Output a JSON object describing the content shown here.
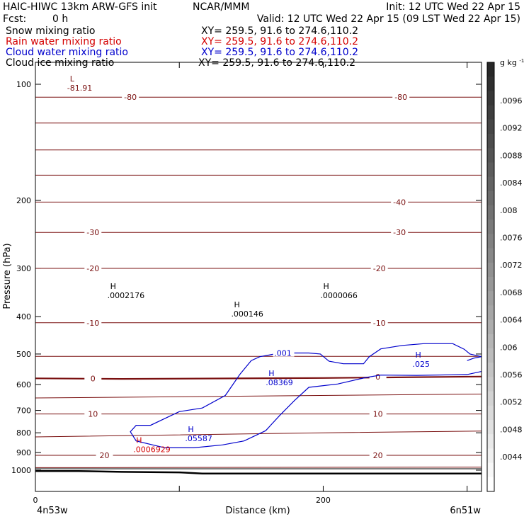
{
  "header": {
    "model": "HAIC-HIWC 13km ARW-GFS init",
    "org": "NCAR/MMM",
    "init": "Init: 12 UTC Wed 22 Apr 15",
    "fcst_label": "Fcst:",
    "fcst_value": "0 h",
    "valid": "Valid: 12 UTC Wed 22 Apr 15 (09 LST Wed 22 Apr 15)"
  },
  "fields": [
    {
      "name": "Snow mixing ratio",
      "xy": "XY= 259.5, 91.6 to 274.6,110.2",
      "color": "#000000"
    },
    {
      "name": "Rain water mixing ratio",
      "xy": "XY= 259.5, 91.6 to 274.6,110.2",
      "color": "#d40000"
    },
    {
      "name": "Cloud water mixing ratio",
      "xy": "XY= 259.5, 91.6 to 274.6,110.2",
      "color": "#0000cc"
    },
    {
      "name": "Cloud ice mixing ratio",
      "xy": "XY= 259.5, 91.6 to 274.6,110.2",
      "color": "#000000"
    }
  ],
  "colors": {
    "temperature": "#7a1010",
    "cloud_water": "#0000cc",
    "rain": "#d40000",
    "terrain": "#000000"
  },
  "chart_data": {
    "type": "line",
    "xlabel": "Distance (km)",
    "ylabel": "Pressure (hPa)",
    "xlim": [
      0,
      310
    ],
    "ylim": [
      1050,
      50
    ],
    "yscale": "log-pressure",
    "x_ticks": [
      0,
      100,
      200,
      300
    ],
    "x_tick_labels": [
      "0",
      "200"
    ],
    "y_ticks": [
      100,
      200,
      300,
      400,
      500,
      600,
      700,
      800,
      900,
      1000
    ],
    "x_endpoints": {
      "left": "4n53w",
      "right": "6n51w"
    },
    "temperature_isotherms": [
      {
        "value": -80,
        "label": "-80",
        "points": [
          [
            0,
            108
          ],
          [
            310,
            108
          ]
        ]
      },
      {
        "value": -70,
        "label": "",
        "points": [
          [
            0,
            126
          ],
          [
            310,
            126
          ]
        ]
      },
      {
        "value": -60,
        "label": "",
        "points": [
          [
            0,
            148
          ],
          [
            310,
            148
          ]
        ]
      },
      {
        "value": -50,
        "label": "",
        "points": [
          [
            0,
            172
          ],
          [
            310,
            172
          ]
        ]
      },
      {
        "value": -40,
        "label": "-40",
        "points": [
          [
            0,
            202
          ],
          [
            310,
            202
          ]
        ]
      },
      {
        "value": -30,
        "label": "-30",
        "points": [
          [
            0,
            242
          ],
          [
            310,
            242
          ]
        ]
      },
      {
        "value": -20,
        "label": "-20",
        "points": [
          [
            0,
            300
          ],
          [
            310,
            300
          ]
        ]
      },
      {
        "value": -10,
        "label": "-10",
        "points": [
          [
            0,
            415
          ],
          [
            310,
            415
          ]
        ]
      },
      {
        "value": -5,
        "label": "",
        "points": [
          [
            0,
            507
          ],
          [
            310,
            507
          ]
        ]
      },
      {
        "value": 0,
        "label": "0",
        "points": [
          [
            0,
            578
          ],
          [
            60,
            580
          ],
          [
            200,
            577
          ],
          [
            310,
            572
          ]
        ]
      },
      {
        "value": 5,
        "label": "",
        "points": [
          [
            0,
            650
          ],
          [
            310,
            635
          ]
        ]
      },
      {
        "value": 10,
        "label": "10",
        "points": [
          [
            0,
            715
          ],
          [
            310,
            715
          ]
        ]
      },
      {
        "value": 15,
        "label": "",
        "points": [
          [
            0,
            820
          ],
          [
            200,
            800
          ],
          [
            310,
            792
          ]
        ]
      },
      {
        "value": 20,
        "label": "20",
        "points": [
          [
            0,
            915
          ],
          [
            310,
            915
          ]
        ]
      },
      {
        "value": 25,
        "label": "",
        "points": [
          [
            0,
            985
          ],
          [
            310,
            982
          ]
        ]
      }
    ],
    "isotherm_labels": [
      {
        "text": "-80",
        "x": 66,
        "p": 108
      },
      {
        "text": "-80",
        "x": 254,
        "p": 108
      },
      {
        "text": "-40",
        "x": 253,
        "p": 202
      },
      {
        "text": "-30",
        "x": 40,
        "p": 242
      },
      {
        "text": "-30",
        "x": 253,
        "p": 242
      },
      {
        "text": "-20",
        "x": 40,
        "p": 300
      },
      {
        "text": "-20",
        "x": 239,
        "p": 300
      },
      {
        "text": "-10",
        "x": 40,
        "p": 415
      },
      {
        "text": "-10",
        "x": 239,
        "p": 415
      },
      {
        "text": "0",
        "x": 40,
        "p": 578
      },
      {
        "text": "0",
        "x": 238,
        "p": 572
      },
      {
        "text": "10",
        "x": 40,
        "p": 715
      },
      {
        "text": "10",
        "x": 238,
        "p": 715
      },
      {
        "text": "20",
        "x": 48,
        "p": 915
      },
      {
        "text": "20",
        "x": 238,
        "p": 915
      }
    ],
    "cloud_water_contour": {
      "value": ".001",
      "points": [
        [
          300,
          520
        ],
        [
          305,
          512
        ],
        [
          310,
          508
        ],
        [
          302,
          500
        ],
        [
          298,
          486
        ],
        [
          290,
          470
        ],
        [
          270,
          470
        ],
        [
          255,
          475
        ],
        [
          240,
          485
        ],
        [
          232,
          508
        ],
        [
          228,
          530
        ],
        [
          214,
          530
        ],
        [
          204,
          522
        ],
        [
          198,
          500
        ],
        [
          190,
          497
        ],
        [
          170,
          497
        ],
        [
          156,
          508
        ],
        [
          150,
          520
        ],
        [
          142,
          565
        ],
        [
          132,
          640
        ],
        [
          116,
          690
        ],
        [
          100,
          705
        ],
        [
          80,
          765
        ],
        [
          70,
          765
        ],
        [
          66,
          795
        ],
        [
          70,
          840
        ],
        [
          90,
          875
        ],
        [
          110,
          875
        ],
        [
          130,
          860
        ],
        [
          145,
          840
        ],
        [
          160,
          790
        ],
        [
          170,
          720
        ],
        [
          180,
          660
        ],
        [
          190,
          610
        ],
        [
          210,
          598
        ],
        [
          230,
          575
        ],
        [
          240,
          567
        ],
        [
          265,
          568
        ],
        [
          300,
          565
        ],
        [
          310,
          555
        ]
      ]
    },
    "terrain": [
      [
        0,
        1005
      ],
      [
        30,
        1005
      ],
      [
        60,
        1010
      ],
      [
        100,
        1013
      ],
      [
        116,
        1020
      ],
      [
        150,
        1020
      ],
      [
        200,
        1020
      ],
      [
        250,
        1020
      ],
      [
        310,
        1020
      ]
    ],
    "terrain_hatch_lines": [
      {
        "p": 990
      },
      {
        "p": 993
      }
    ],
    "markers": [
      {
        "symbol": "L",
        "value": "-81.91",
        "x": 24,
        "p": 100,
        "color": "#7a1010"
      },
      {
        "symbol": "H",
        "value": ".0002176",
        "x": 52,
        "p": 345,
        "color": "#000000"
      },
      {
        "symbol": "H",
        "value": ".000146",
        "x": 138,
        "p": 385,
        "color": "#000000"
      },
      {
        "symbol": "H",
        "value": ".0000066",
        "x": 200,
        "p": 345,
        "color": "#000000"
      },
      {
        "symbol": "H",
        "value": ".08369",
        "x": 162,
        "p": 580,
        "color": "#0000cc"
      },
      {
        "symbol": "H",
        "value": ".025",
        "x": 264,
        "p": 520,
        "color": "#0000cc"
      },
      {
        "symbol": "H",
        "value": ".05587",
        "x": 106,
        "p": 810,
        "color": "#0000cc"
      },
      {
        "symbol": "H",
        "value": ".0006929",
        "x": 70,
        "p": 865,
        "color": "#d40000"
      }
    ],
    "colorbar": {
      "units": "g kg",
      "units_exp": "-1",
      "labels": [
        ".0096",
        ".0092",
        ".0088",
        ".0084",
        ".008",
        ".0076",
        ".0072",
        ".0068",
        ".0064",
        ".006",
        ".0056",
        ".0052",
        ".0048",
        ".0044"
      ]
    }
  }
}
